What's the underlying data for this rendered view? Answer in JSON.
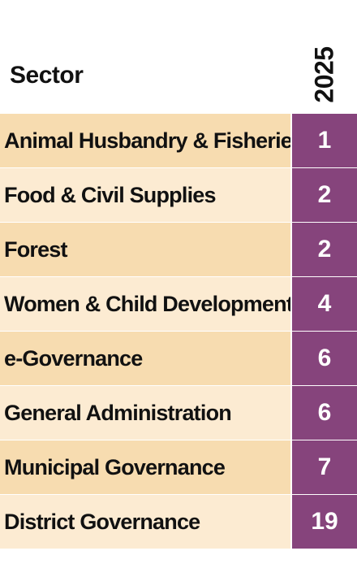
{
  "chart_data": {
    "type": "table",
    "columns": [
      "Sector",
      "2025"
    ],
    "rows": [
      {
        "sector": "Animal Husbandry & Fisheries",
        "value": 1
      },
      {
        "sector": "Food & Civil Supplies",
        "value": 2
      },
      {
        "sector": "Forest",
        "value": 2
      },
      {
        "sector": "Women & Child Development",
        "value": 4
      },
      {
        "sector": "e-Governance",
        "value": 6
      },
      {
        "sector": "General Administration",
        "value": 6
      },
      {
        "sector": "Municipal Governance",
        "value": 7
      },
      {
        "sector": "District Governance",
        "value": 19
      }
    ]
  },
  "colors": {
    "label_bg_odd": "#f7dcb0",
    "label_bg_even": "#fcebd2",
    "value_bg": "#86447c",
    "value_text": "#ffffff",
    "label_text": "#111111"
  }
}
